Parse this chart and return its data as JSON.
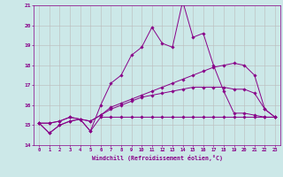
{
  "xlabel": "Windchill (Refroidissement éolien,°C)",
  "background_color": "#cce8e8",
  "line_color": "#880088",
  "grid_color": "#bbbbbb",
  "xlim": [
    -0.5,
    23.5
  ],
  "ylim": [
    14,
    21
  ],
  "xticks": [
    0,
    1,
    2,
    3,
    4,
    5,
    6,
    7,
    8,
    9,
    10,
    11,
    12,
    13,
    14,
    15,
    16,
    17,
    18,
    19,
    20,
    21,
    22,
    23
  ],
  "yticks": [
    14,
    15,
    16,
    17,
    18,
    19,
    20,
    21
  ],
  "series": [
    [
      15.1,
      14.6,
      15.0,
      15.2,
      15.3,
      14.7,
      15.4,
      15.4,
      15.4,
      15.4,
      15.4,
      15.4,
      15.4,
      15.4,
      15.4,
      15.4,
      15.4,
      15.4,
      15.4,
      15.4,
      15.4,
      15.4,
      15.4,
      15.4
    ],
    [
      15.1,
      14.6,
      15.0,
      15.2,
      15.3,
      14.7,
      16.0,
      17.1,
      17.5,
      18.5,
      18.9,
      19.9,
      19.1,
      18.9,
      21.2,
      19.4,
      19.6,
      18.0,
      16.7,
      15.6,
      15.6,
      15.5,
      15.4,
      15.4
    ],
    [
      15.1,
      15.1,
      15.2,
      15.4,
      15.3,
      15.2,
      15.5,
      15.9,
      16.1,
      16.3,
      16.5,
      16.7,
      16.9,
      17.1,
      17.3,
      17.5,
      17.7,
      17.9,
      18.0,
      18.1,
      18.0,
      17.5,
      15.8,
      15.4
    ],
    [
      15.1,
      15.1,
      15.2,
      15.4,
      15.3,
      15.2,
      15.5,
      15.8,
      16.0,
      16.2,
      16.4,
      16.5,
      16.6,
      16.7,
      16.8,
      16.9,
      16.9,
      16.9,
      16.9,
      16.8,
      16.8,
      16.6,
      15.8,
      15.4
    ]
  ]
}
